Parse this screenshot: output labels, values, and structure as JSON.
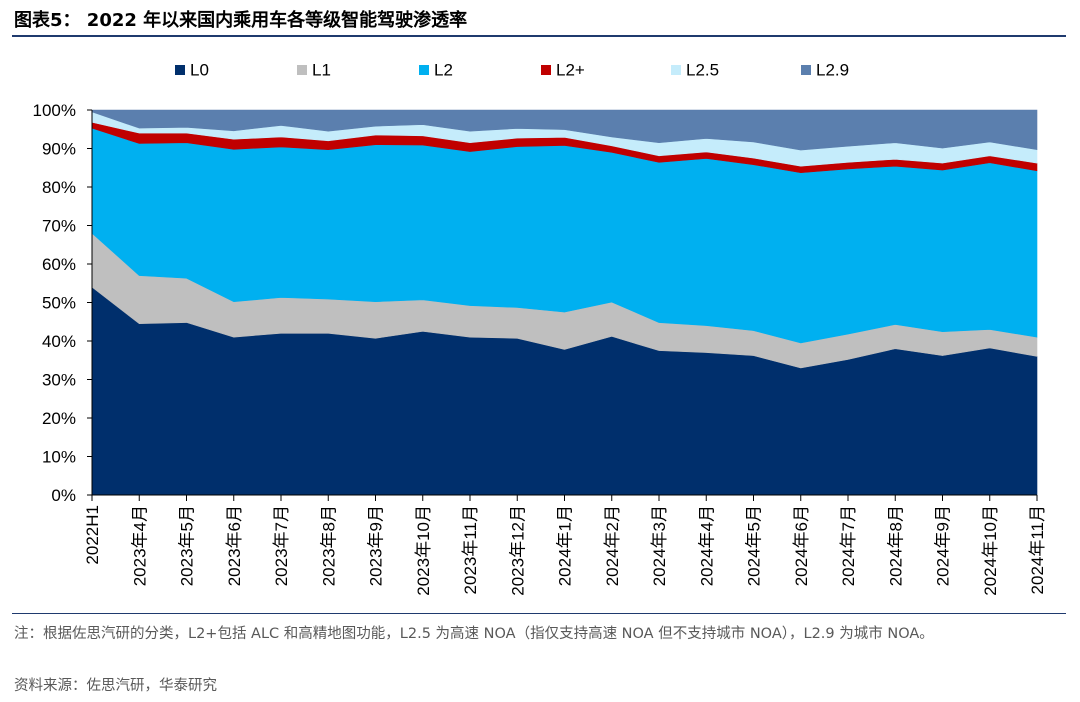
{
  "header": {
    "title": "图表5：  2022 年以来国内乘用车各等级智能驾驶渗透率"
  },
  "footer": {
    "note": "注：根据佐思汽研的分类，L2+包括 ALC 和高精地图功能，L2.5 为高速 NOA（指仅支持高速 NOA 但不支持城市 NOA），L2.9 为城市 NOA。",
    "source": "资料来源：佐思汽研，华泰研究"
  },
  "chart_data": {
    "type": "area",
    "stacked": true,
    "title": "2022 年以来国内乘用车各等级智能驾驶渗透率",
    "xlabel": "",
    "ylabel": "",
    "ylim": [
      0,
      100
    ],
    "y_ticks": [
      "0%",
      "10%",
      "20%",
      "30%",
      "40%",
      "50%",
      "60%",
      "70%",
      "80%",
      "90%",
      "100%"
    ],
    "legend_position": "top",
    "categories": [
      "2022H1",
      "2023年4月",
      "2023年5月",
      "2023年6月",
      "2023年7月",
      "2023年8月",
      "2023年9月",
      "2023年10月",
      "2023年11月",
      "2023年12月",
      "2024年1月",
      "2024年2月",
      "2024年3月",
      "2024年4月",
      "2024年5月",
      "2024年6月",
      "2024年7月",
      "2024年8月",
      "2024年9月",
      "2024年10月",
      "2024年11月"
    ],
    "series": [
      {
        "name": "L0",
        "color": "#002f6c",
        "values": [
          54,
          44.5,
          44.8,
          41,
          42,
          42,
          40.7,
          42.5,
          41,
          40.7,
          37.8,
          41.2,
          37.5,
          37,
          36.2,
          33,
          35.2,
          38,
          36.2,
          38.2,
          36
        ]
      },
      {
        "name": "L1",
        "color": "#bfbfbf",
        "values": [
          14,
          12.5,
          11.5,
          9.2,
          9.3,
          8.9,
          9.5,
          8.2,
          8.2,
          8,
          9.7,
          8.9,
          7.3,
          7,
          6.5,
          6.5,
          6.6,
          6.3,
          6.2,
          4.8,
          5
        ]
      },
      {
        "name": "L2",
        "color": "#00b0f0",
        "values": [
          27.3,
          34.3,
          35.2,
          39.6,
          39.1,
          38.8,
          40.8,
          40.2,
          40,
          41.8,
          43.3,
          38.9,
          41.6,
          43.4,
          43.1,
          44.2,
          42.9,
          41.1,
          42,
          43.3,
          43.2
        ]
      },
      {
        "name": "L2+",
        "color": "#c00000",
        "values": [
          1.5,
          2.7,
          2.5,
          2.6,
          2.6,
          2.3,
          2.5,
          2.4,
          2.3,
          2.2,
          2.1,
          1.7,
          1.7,
          1.7,
          1.7,
          1.7,
          1.7,
          1.8,
          1.8,
          1.8,
          2
        ]
      },
      {
        "name": "L2.5",
        "color": "#c5ecfb",
        "values": [
          2.7,
          1.3,
          1.5,
          2.2,
          3,
          2.5,
          2.3,
          2.9,
          3,
          2.5,
          2,
          2.3,
          3.4,
          3.5,
          4.2,
          4.2,
          4.2,
          4.3,
          3.9,
          3.6,
          3.5
        ]
      },
      {
        "name": "L2.9",
        "color": "#5b7fae",
        "values": [
          0.5,
          4.7,
          4.5,
          5.4,
          4,
          5.5,
          4.2,
          3.8,
          5.5,
          4.8,
          5.1,
          7,
          8.5,
          7.4,
          8.3,
          10.4,
          9.4,
          8.5,
          9.9,
          8.3,
          10.3
        ]
      }
    ]
  }
}
